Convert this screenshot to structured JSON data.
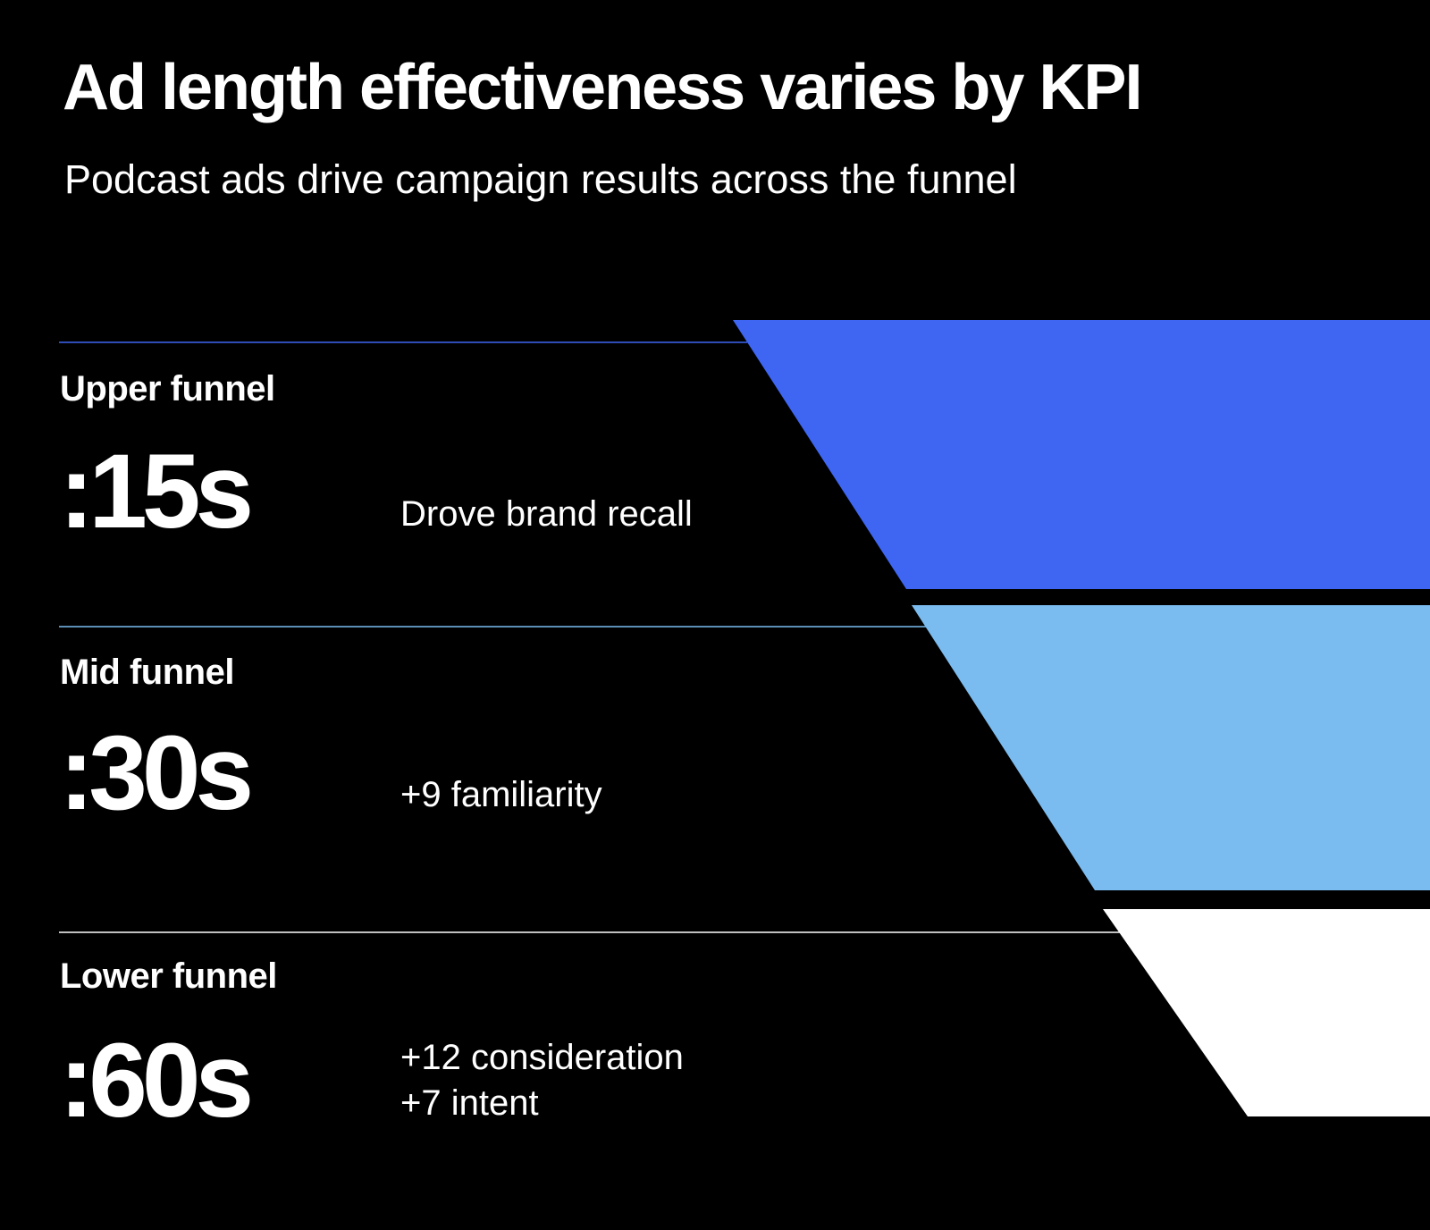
{
  "title": "Ad length effectiveness varies by KPI",
  "subtitle": "Podcast ads drive campaign results across the funnel",
  "colors": {
    "background": "#000000",
    "upper": "#3e66f3",
    "mid": "#7bbcf0",
    "lower": "#ffffff",
    "divider_upper": "#3e66f3",
    "divider_mid": "#7bbcf0",
    "divider_lower": "#ffffff"
  },
  "stages": [
    {
      "label": "Upper funnel",
      "length": ":15s",
      "metrics": [
        "Drove brand recall"
      ]
    },
    {
      "label": "Mid funnel",
      "length": ":30s",
      "metrics": [
        "+9 familiarity"
      ]
    },
    {
      "label": "Lower funnel",
      "length": ":60s",
      "metrics": [
        "+12 consideration",
        "+7 intent"
      ]
    }
  ]
}
